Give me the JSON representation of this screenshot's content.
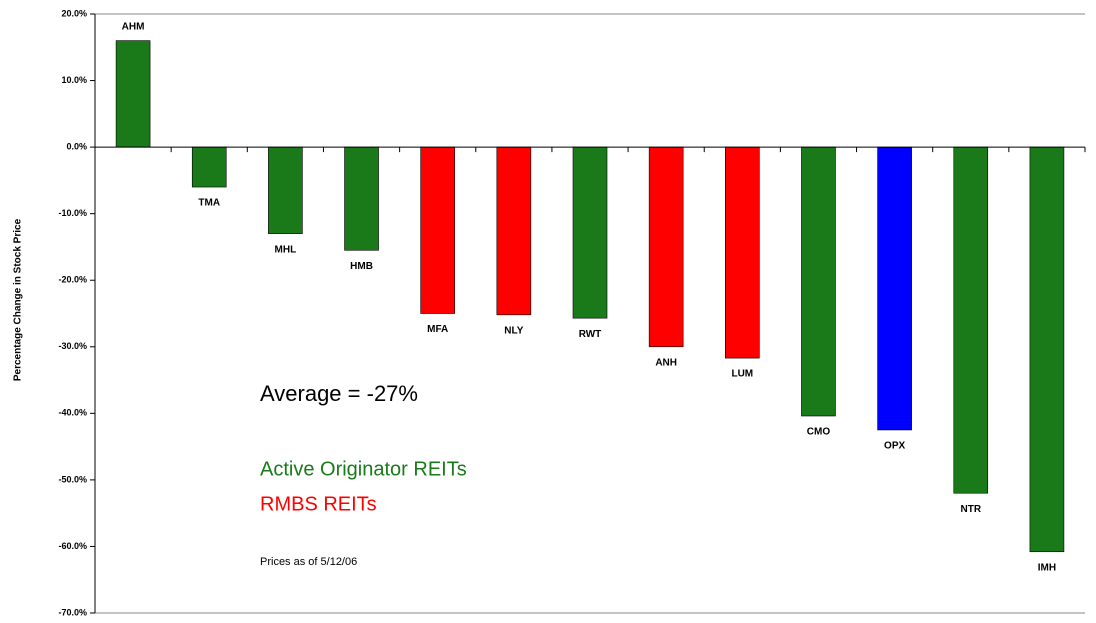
{
  "chart_data": {
    "type": "bar",
    "y_axis_label": "Percentage Change in Stock Price",
    "categories": [
      "AHM",
      "TMA",
      "MHL",
      "HMB",
      "MFA",
      "NLY",
      "RWT",
      "ANH",
      "LUM",
      "CMO",
      "OPX",
      "NTR",
      "IMH"
    ],
    "values": [
      16,
      -6,
      -13,
      -15.5,
      -25,
      -25.2,
      -25.7,
      -30,
      -31.7,
      -40.4,
      -42.5,
      -52,
      -60.8
    ],
    "colors": [
      "#1a7a1a",
      "#1a7a1a",
      "#1a7a1a",
      "#1a7a1a",
      "#ff0000",
      "#ff0000",
      "#1a7a1a",
      "#ff0000",
      "#ff0000",
      "#1a7a1a",
      "#0000ff",
      "#1a7a1a",
      "#1a7a1a"
    ],
    "ylim": [
      -70,
      20
    ],
    "yticks": [
      {
        "value": 20,
        "label": "20.0%"
      },
      {
        "value": 10,
        "label": "10.0%"
      },
      {
        "value": 0,
        "label": "0.0%"
      },
      {
        "value": -10,
        "label": "-10.0%"
      },
      {
        "value": -20,
        "label": "-20.0%"
      },
      {
        "value": -30,
        "label": "-30.0%"
      },
      {
        "value": -40,
        "label": "-40.0%"
      },
      {
        "value": -50,
        "label": "-50.0%"
      },
      {
        "value": -60,
        "label": "-60.0%"
      },
      {
        "value": -70,
        "label": "-70.0%"
      }
    ],
    "grid": false,
    "annotations": [
      {
        "text": "Average = -27%",
        "color": "#000000"
      },
      {
        "text": "Active Originator REITs",
        "color": "#1a7a1a"
      },
      {
        "text": "RMBS REITs",
        "color": "#ff0000"
      },
      {
        "text": "Prices as of 5/12/06",
        "color": "#000000"
      }
    ]
  }
}
